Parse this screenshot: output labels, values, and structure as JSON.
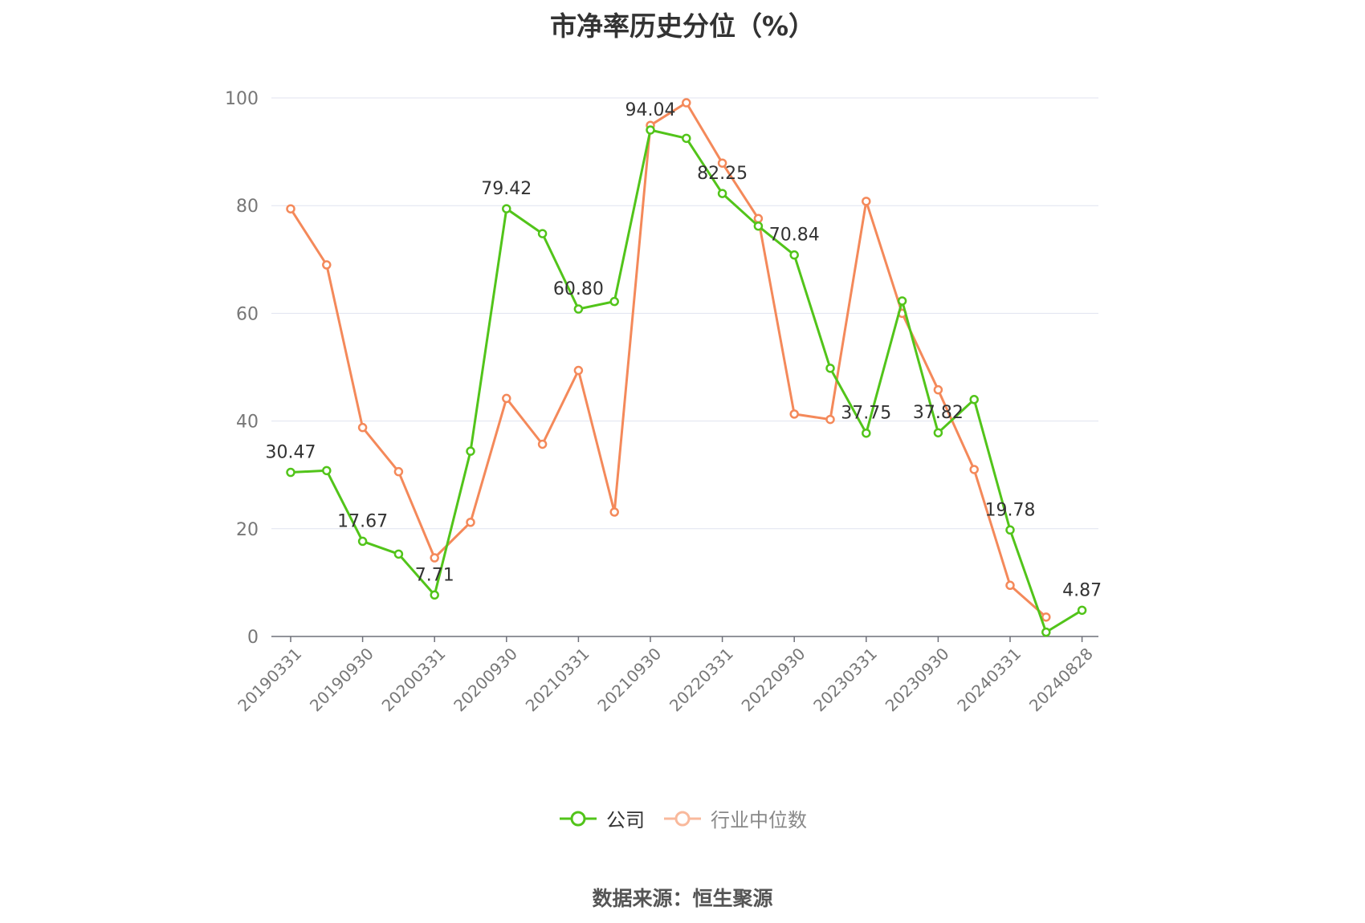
{
  "chart_data": {
    "type": "line",
    "title": "市净率历史分位（%）",
    "source": "数据来源：恒生聚源",
    "ylim": [
      0,
      100
    ],
    "y_ticks": [
      0,
      20,
      40,
      60,
      80,
      100
    ],
    "x_tick_labels": [
      "20190331",
      "20190930",
      "20200331",
      "20200930",
      "20210331",
      "20210930",
      "20220331",
      "20220930",
      "20230331",
      "20230930",
      "20240331",
      "20240828"
    ],
    "grid": true,
    "legend_position": "bottom",
    "x": [
      "20190331",
      "20190630",
      "20190930",
      "20191231",
      "20200331",
      "20200630",
      "20200930",
      "20201231",
      "20210331",
      "20210630",
      "20210930",
      "20211231",
      "20220331",
      "20220630",
      "20220930",
      "20221231",
      "20230331",
      "20230630",
      "20230930",
      "20231231",
      "20240331",
      "20240630",
      "20240828"
    ],
    "series": [
      {
        "name": "公司",
        "color": "#52c41a",
        "values": [
          30.47,
          30.8,
          17.67,
          15.3,
          7.71,
          34.4,
          79.42,
          74.8,
          60.8,
          62.2,
          94.04,
          92.5,
          82.25,
          76.2,
          70.84,
          49.8,
          37.75,
          62.3,
          37.82,
          44.0,
          19.78,
          0.8,
          4.87
        ],
        "labels": {
          "0": "30.47",
          "2": "17.67",
          "4": "7.71",
          "6": "79.42",
          "8": "60.80",
          "10": "94.04",
          "12": "82.25",
          "14": "70.84",
          "16": "37.75",
          "18": "37.82",
          "20": "19.78",
          "22": "4.87"
        }
      },
      {
        "name": "行业中位数",
        "color": "#f4895a",
        "values": [
          79.4,
          69.0,
          38.8,
          30.6,
          14.6,
          21.2,
          44.2,
          35.7,
          49.4,
          23.1,
          94.9,
          99.1,
          87.9,
          77.6,
          41.3,
          40.3,
          80.8,
          60.0,
          45.8,
          31.0,
          9.5,
          3.6,
          null
        ]
      }
    ]
  }
}
